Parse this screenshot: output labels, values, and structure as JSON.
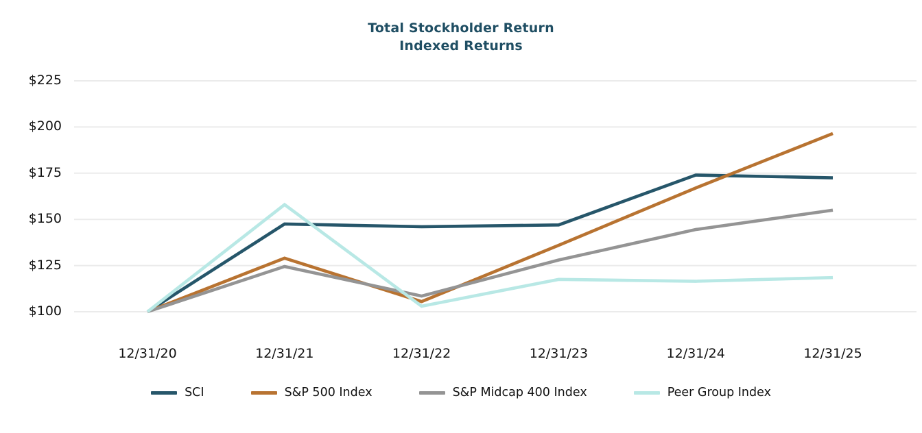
{
  "title": {
    "line1": "Total Stockholder Return",
    "line2": "Indexed Returns",
    "color": "#1F4E63"
  },
  "chart_data": {
    "type": "line",
    "title": "Total Stockholder Return Indexed Returns",
    "xlabel": "",
    "ylabel": "",
    "ylim": [
      100,
      225
    ],
    "grid": true,
    "gridline_color": "#EBEBEB",
    "legend_position": "bottom",
    "categories": [
      "12/31/20",
      "12/31/21",
      "12/31/22",
      "12/31/23",
      "12/31/24",
      "12/31/25"
    ],
    "y_ticks": [
      {
        "value": 225,
        "label": "$225"
      },
      {
        "value": 200,
        "label": "$200"
      },
      {
        "value": 175,
        "label": "$175"
      },
      {
        "value": 150,
        "label": "$150"
      },
      {
        "value": 125,
        "label": "$125"
      },
      {
        "value": 100,
        "label": "$100"
      }
    ],
    "series": [
      {
        "name": "SCI",
        "color": "#26566A",
        "values": [
          100,
          147.5,
          146,
          147,
          174,
          172.5
        ]
      },
      {
        "name": "S&P 500 Index",
        "color": "#B87331",
        "values": [
          100,
          129,
          105.5,
          136,
          167,
          196.5
        ]
      },
      {
        "name": "S&P Midcap 400 Index",
        "color": "#949494",
        "values": [
          100,
          124.5,
          108.5,
          128,
          144.5,
          155
        ]
      },
      {
        "name": "Peer Group Index",
        "color": "#B8E8E5",
        "values": [
          100,
          158,
          103,
          117.5,
          116.5,
          118.5
        ]
      }
    ]
  }
}
